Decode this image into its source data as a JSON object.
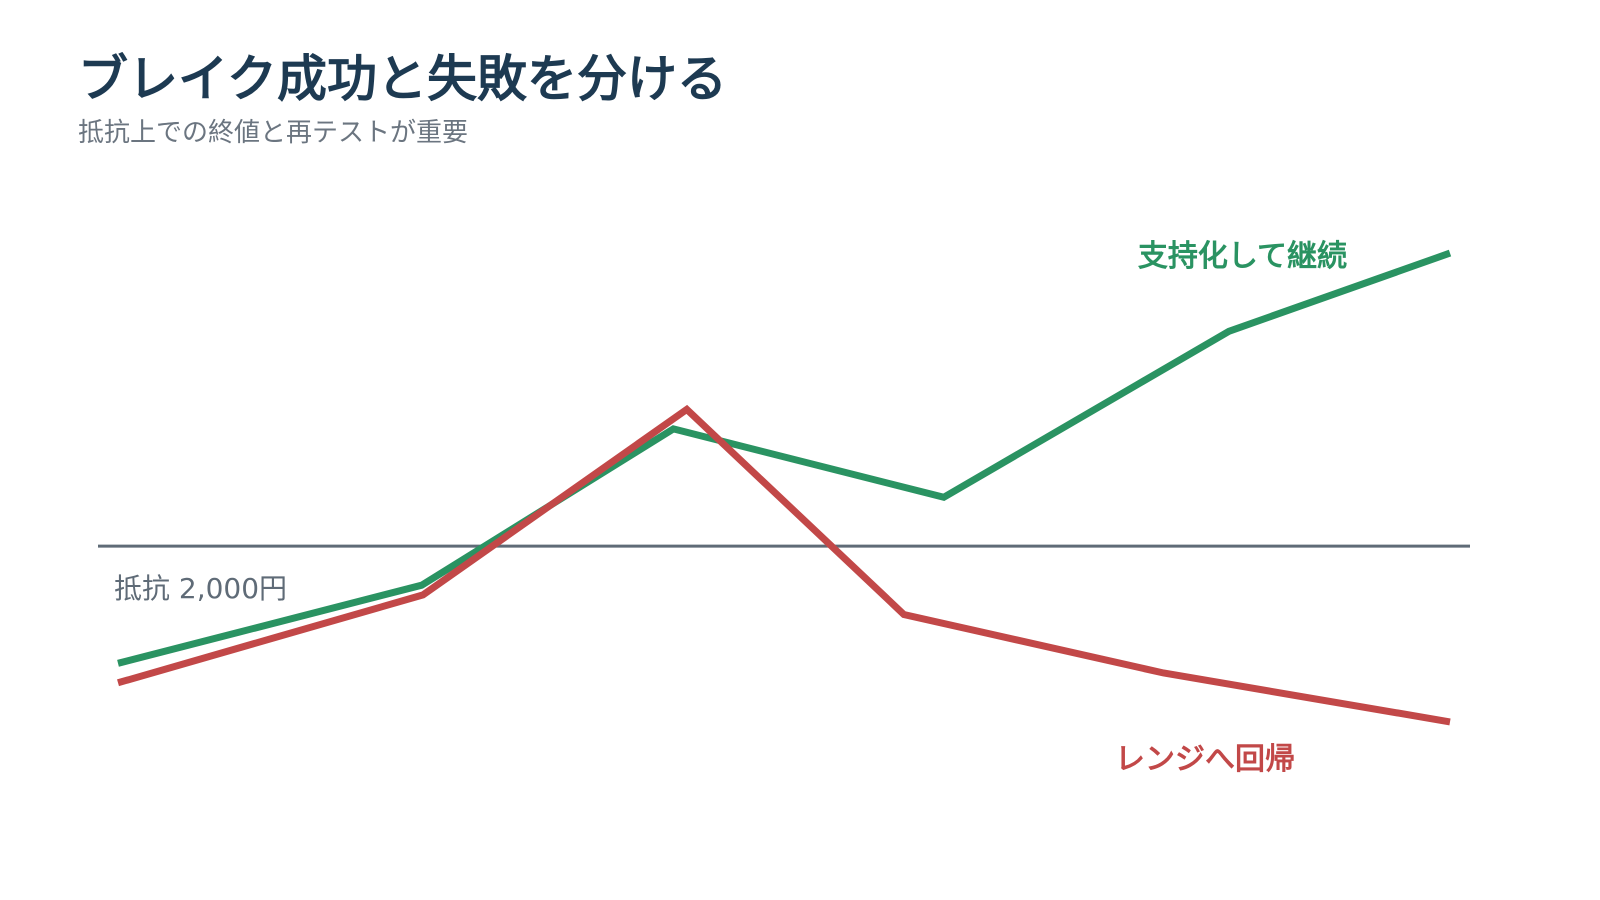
{
  "title": "ブレイク成功と失敗を分ける",
  "subtitle": "抵抗上での終値と再テストが重要",
  "chart_data": {
    "type": "line",
    "title": "ブレイク成功と失敗を分ける",
    "subtitle": "抵抗上での終値と再テストが重要",
    "xlabel": "",
    "ylabel": "",
    "x_ticks_visible": false,
    "y_ticks_visible": false,
    "grid": false,
    "reference_line": {
      "label": "抵抗 2,000円",
      "value": 2000,
      "color": "#5f6b77"
    },
    "series": [
      {
        "name": "支持化して継続",
        "color": "#2a9362",
        "x": [
          0,
          0.228,
          0.417,
          0.62,
          0.834,
          1
        ],
        "values": [
          1940,
          1980,
          2060,
          2025,
          2110,
          2150
        ]
      },
      {
        "name": "レンジへ回帰",
        "color": "#c24848",
        "x": [
          0,
          0.229,
          0.427,
          0.59,
          0.785,
          1
        ],
        "values": [
          1930,
          1975,
          2070,
          1965,
          1935,
          1910
        ]
      }
    ],
    "xlim": [
      0,
      1
    ],
    "ylim": [
      1870,
      2190
    ]
  }
}
